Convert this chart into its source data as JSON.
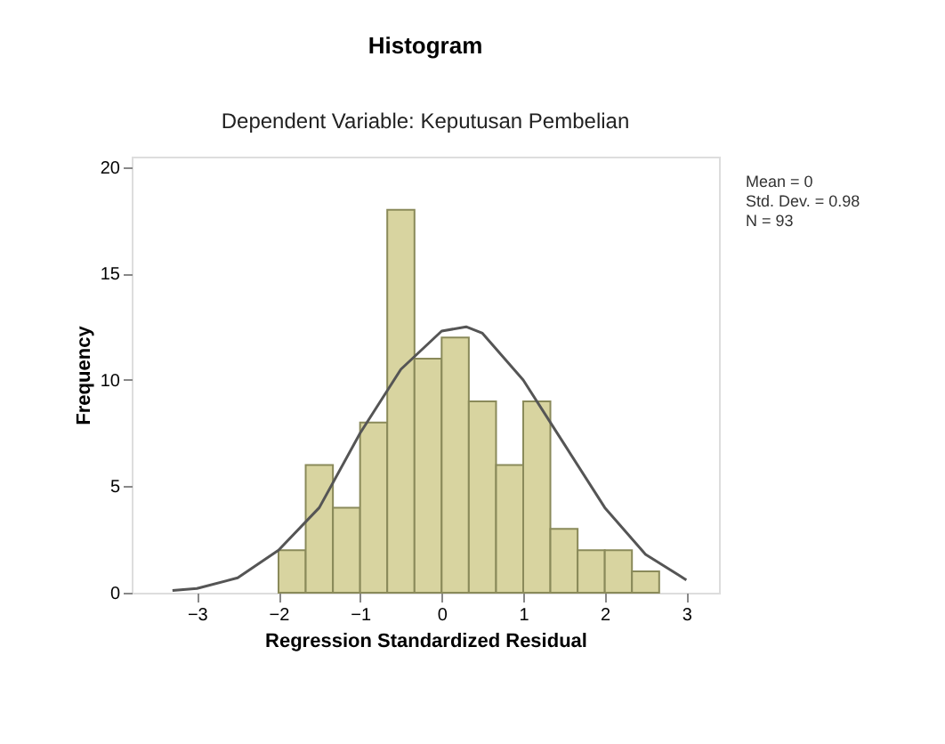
{
  "chart_data": {
    "type": "histogram",
    "title": "Histogram",
    "subtitle": "Dependent Variable: Keputusan Pembelian",
    "xlabel": "Regression Standardized Residual",
    "ylabel": "Frequency",
    "bins": [
      -2,
      -1.667,
      -1.333,
      -1,
      -0.667,
      -0.333,
      0,
      0.333,
      0.667,
      1,
      1.333,
      1.667,
      2,
      2.333,
      2.667
    ],
    "values": [
      2,
      6,
      4,
      8,
      18,
      11,
      12,
      9,
      6,
      9,
      3,
      2,
      2,
      1
    ],
    "color": "#d8d4a0",
    "series": [
      {
        "type": "line",
        "color": "#555555",
        "x": [
          -3.3,
          -3,
          -2.5,
          -2,
          -1.5,
          -1,
          -0.5,
          0,
          0.3,
          0.5,
          1,
          1.5,
          2,
          2.5,
          3
        ],
        "values": [
          0.1,
          0.2,
          0.7,
          2,
          4,
          7.5,
          10.5,
          12.3,
          12.5,
          12.2,
          10,
          7,
          4,
          1.8,
          0.6
        ]
      }
    ],
    "xlim": [
      -3.8,
      3.4
    ],
    "xticks": [
      -3,
      -2,
      -1,
      0,
      1,
      2,
      3
    ],
    "ylim": [
      0,
      20.5
    ],
    "yticks": [
      0,
      5,
      10,
      15,
      20
    ],
    "annotations": [
      "Mean = 0",
      "Std. Dev. = 0.98",
      "N = 93"
    ],
    "grid": false
  }
}
